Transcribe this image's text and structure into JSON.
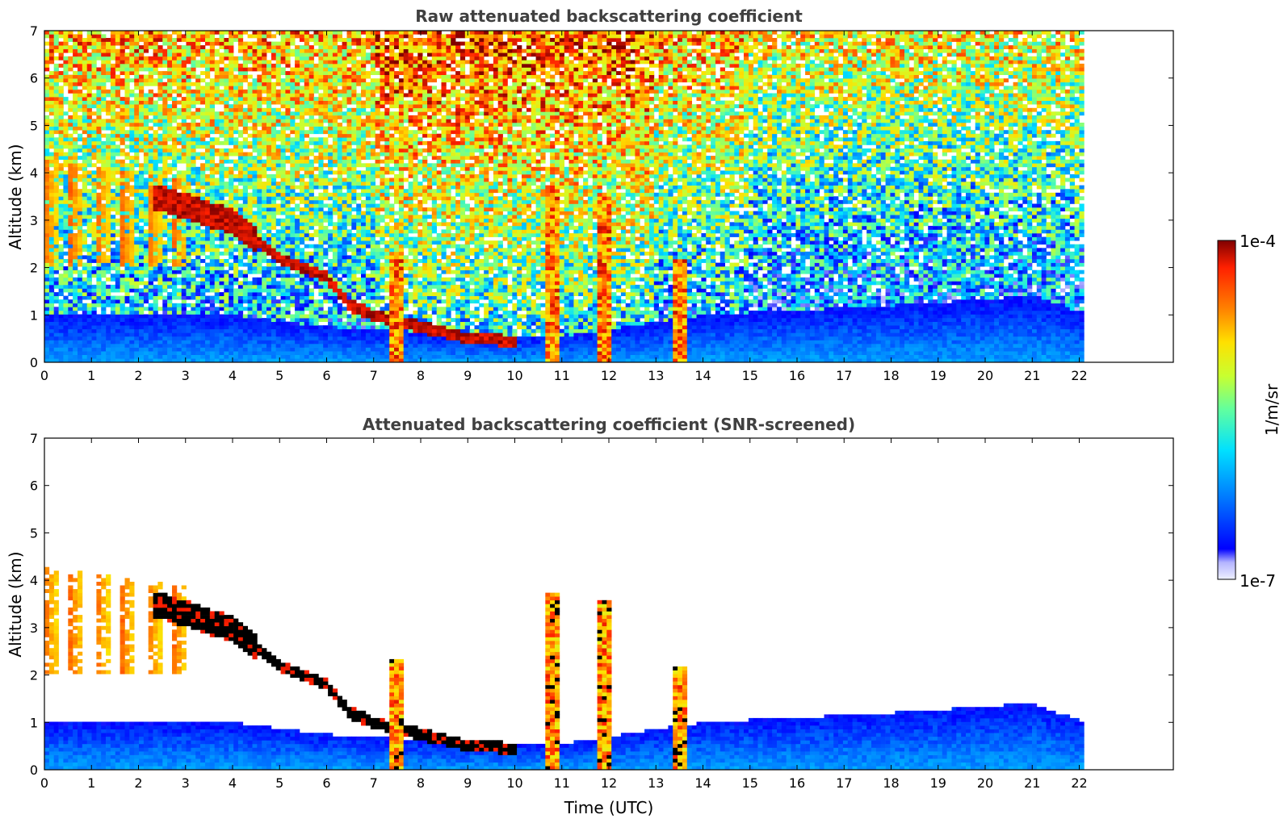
{
  "chart_data": [
    {
      "type": "heatmap",
      "title": "Raw attenuated backscattering coefficient",
      "xlabel": "",
      "ylabel": "Altitude (km)",
      "xlim": [
        0,
        24
      ],
      "ylim": [
        0,
        7
      ],
      "data_x_end": 22.1,
      "x_ticks": [
        0,
        1,
        2,
        3,
        4,
        5,
        6,
        7,
        8,
        9,
        10,
        11,
        12,
        13,
        14,
        15,
        16,
        17,
        18,
        19,
        20,
        21,
        22
      ],
      "y_ticks": [
        0,
        1,
        2,
        3,
        4,
        5,
        6,
        7
      ],
      "grid": false,
      "screened": false,
      "features": {
        "boundary_layer_top_km": [
          [
            0,
            1.0
          ],
          [
            4,
            1.0
          ],
          [
            6,
            0.75
          ],
          [
            9,
            0.55
          ],
          [
            11,
            0.55
          ],
          [
            14,
            1.0
          ],
          [
            18,
            1.2
          ],
          [
            21,
            1.4
          ],
          [
            22.1,
            1.0
          ]
        ],
        "elevated_layer": [
          [
            2.3,
            3.5
          ],
          [
            3,
            3.3
          ],
          [
            3.5,
            3.1
          ],
          [
            4,
            3.0
          ],
          [
            4.5,
            2.6
          ],
          [
            5,
            2.2
          ],
          [
            5.5,
            2.0
          ],
          [
            6,
            1.8
          ],
          [
            6.5,
            1.2
          ],
          [
            7,
            1.0
          ],
          [
            8,
            0.75
          ],
          [
            9,
            0.5
          ],
          [
            10,
            0.45
          ]
        ],
        "precipitation_columns_h": [
          [
            7.5,
            2.3
          ],
          [
            10.8,
            3.7
          ],
          [
            11.9,
            3.6
          ],
          [
            13.5,
            2.2
          ]
        ]
      }
    },
    {
      "type": "heatmap",
      "title": "Attenuated backscattering coefficient (SNR-screened)",
      "xlabel": "Time (UTC)",
      "ylabel": "Altitude (km)",
      "xlim": [
        0,
        24
      ],
      "ylim": [
        0,
        7
      ],
      "data_x_end": 22.1,
      "x_ticks": [
        0,
        1,
        2,
        3,
        4,
        5,
        6,
        7,
        8,
        9,
        10,
        11,
        12,
        13,
        14,
        15,
        16,
        17,
        18,
        19,
        20,
        21,
        22
      ],
      "y_ticks": [
        0,
        1,
        2,
        3,
        4,
        5,
        6,
        7
      ],
      "grid": false,
      "screened": true
    }
  ],
  "colorbar": {
    "label": "1/m/sr",
    "min_label": "1e-7",
    "max_label": "1e-4",
    "colormap": "jet",
    "colors": [
      "#eef0ff",
      "#b4b4ff",
      "#0000ff",
      "#0080ff",
      "#00e0ff",
      "#60ffa0",
      "#c8ff30",
      "#ffe000",
      "#ff8000",
      "#ff2000",
      "#800000"
    ]
  }
}
